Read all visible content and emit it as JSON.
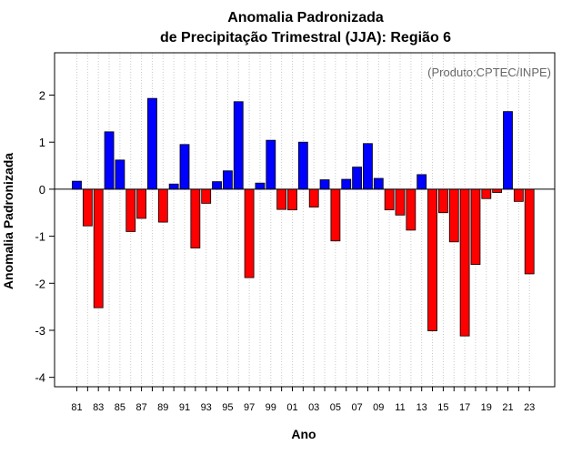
{
  "chart_data": {
    "type": "bar",
    "title_line1": "Anomalia Padronizada",
    "title_line2": "de Precipitação Trimestral (JJA): Região 6",
    "credit": "(Produto:CPTEC/INPE)",
    "xlabel": "Ano",
    "ylabel": "Anomalia Padronizada",
    "ylim": [
      -4.2,
      2.9
    ],
    "yticks": [
      -4,
      -3,
      -2,
      -1,
      0,
      1,
      2
    ],
    "grid": "vertical-dotted",
    "positive_color": "#0000ff",
    "negative_color": "#ff0000",
    "categories": [
      "1981",
      "1982",
      "1983",
      "1984",
      "1985",
      "1986",
      "1987",
      "1988",
      "1989",
      "1990",
      "1991",
      "1992",
      "1993",
      "1994",
      "1995",
      "1996",
      "1997",
      "1998",
      "1999",
      "2000",
      "2001",
      "2002",
      "2003",
      "2004",
      "2005",
      "2006",
      "2007",
      "2008",
      "2009",
      "2010",
      "2011",
      "2012",
      "2013",
      "2014",
      "2015",
      "2016",
      "2017",
      "2018",
      "2019",
      "2020",
      "2021",
      "2022",
      "2023"
    ],
    "xtick_labels": [
      "81",
      "83",
      "85",
      "87",
      "89",
      "91",
      "93",
      "95",
      "97",
      "99",
      "01",
      "03",
      "05",
      "07",
      "09",
      "11",
      "13",
      "15",
      "17",
      "19",
      "21",
      "23"
    ],
    "values": [
      0.17,
      -0.78,
      -2.52,
      1.22,
      0.62,
      -0.9,
      -0.62,
      1.93,
      -0.7,
      0.11,
      0.95,
      -1.25,
      -0.3,
      0.16,
      0.39,
      1.86,
      -1.88,
      0.13,
      1.04,
      -0.43,
      -0.44,
      1.0,
      -0.38,
      0.2,
      -1.1,
      0.21,
      0.47,
      0.97,
      0.23,
      -0.44,
      -0.55,
      -0.87,
      0.31,
      -3.01,
      -0.5,
      -1.12,
      -3.12,
      -1.6,
      -0.2,
      -0.07,
      1.65,
      -0.26,
      -1.8
    ]
  }
}
